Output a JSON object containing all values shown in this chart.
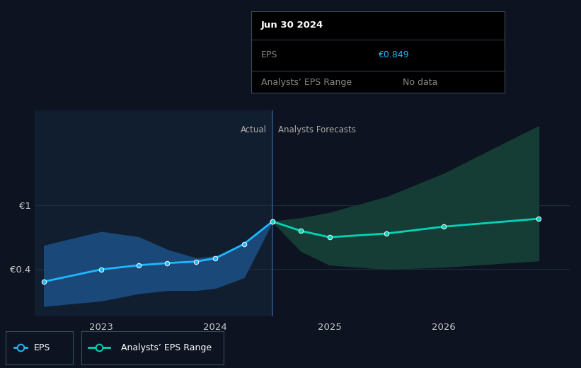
{
  "bg_color": "#0d1320",
  "plot_bg_color": "#0d1320",
  "grid_color": "#1e2d40",
  "panel_left_color": "#111e30",
  "eps_x": [
    2022.5,
    2023.0,
    2023.33,
    2023.58,
    2023.83,
    2024.0,
    2024.25,
    2024.5
  ],
  "eps_y": [
    0.28,
    0.395,
    0.435,
    0.455,
    0.47,
    0.5,
    0.635,
    0.849
  ],
  "eps_band_upper": [
    0.62,
    0.75,
    0.7,
    0.58,
    0.5,
    0.52,
    0.62,
    0.849
  ],
  "eps_band_lower": [
    0.05,
    0.1,
    0.17,
    0.2,
    0.2,
    0.22,
    0.32,
    0.849
  ],
  "forecast_x": [
    2024.5,
    2024.75,
    2025.0,
    2025.5,
    2026.0,
    2026.83
  ],
  "forecast_y": [
    0.849,
    0.76,
    0.7,
    0.735,
    0.8,
    0.875
  ],
  "forecast_band_upper": [
    0.849,
    0.88,
    0.93,
    1.08,
    1.3,
    1.75
  ],
  "forecast_band_lower": [
    0.849,
    0.57,
    0.44,
    0.4,
    0.42,
    0.48
  ],
  "divider_x": 2024.5,
  "eps_color": "#1eb8ff",
  "eps_band_color": "#1a4878",
  "forecast_color": "#00d4b8",
  "forecast_band_color": "#163d35",
  "actual_label": "Actual",
  "forecast_label": "Analysts Forecasts",
  "ytick_labels": [
    "€0.4",
    "€1"
  ],
  "ytick_vals": [
    0.4,
    1.0
  ],
  "xticks": [
    2023.0,
    2024.0,
    2025.0,
    2026.0
  ],
  "xtick_labels": [
    "2023",
    "2024",
    "2025",
    "2026"
  ],
  "tooltip_date": "Jun 30 2024",
  "tooltip_eps_label": "EPS",
  "tooltip_eps_val": "€0.849",
  "tooltip_range_label": "Analysts’ EPS Range",
  "tooltip_range_val": "No data",
  "legend_eps": "EPS",
  "legend_range": "Analysts’ EPS Range",
  "xlim": [
    2022.42,
    2027.1
  ],
  "ylim": [
    -0.05,
    1.9
  ]
}
